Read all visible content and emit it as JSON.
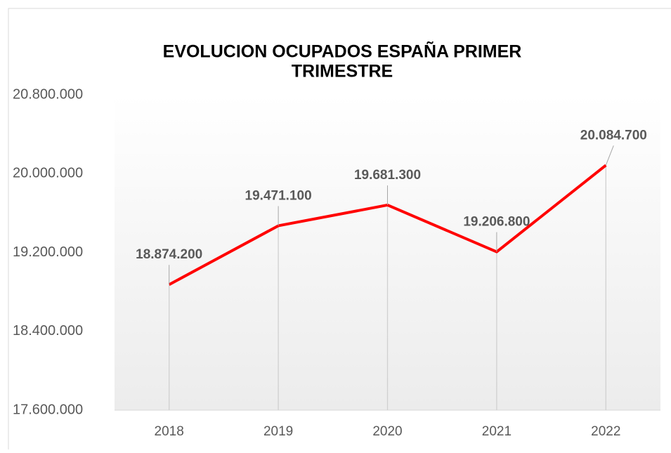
{
  "chart_data": {
    "type": "line",
    "title": [
      "EVOLUCION OCUPADOS ESPAÑA PRIMER",
      "TRIMESTRE"
    ],
    "categories": [
      "2018",
      "2019",
      "2020",
      "2021",
      "2022"
    ],
    "series": [
      {
        "name": "Ocupados",
        "color": "#ff0000",
        "values": [
          18874200,
          19471100,
          19681300,
          19206800,
          20084700
        ],
        "value_labels": [
          "18.874.200",
          "19.471.100",
          "19.681.300",
          "19.206.800",
          "20.084.700"
        ]
      }
    ],
    "ylim": [
      17600000,
      20800000
    ],
    "yticks": [
      {
        "value": 17600000,
        "label": "17.600.000"
      },
      {
        "value": 18400000,
        "label": "18.400.000"
      },
      {
        "value": 19200000,
        "label": "19.200.000"
      },
      {
        "value": 20000000,
        "label": "20.000.000"
      },
      {
        "value": 20800000,
        "label": "20.800.000"
      }
    ],
    "drop_lines": true
  }
}
